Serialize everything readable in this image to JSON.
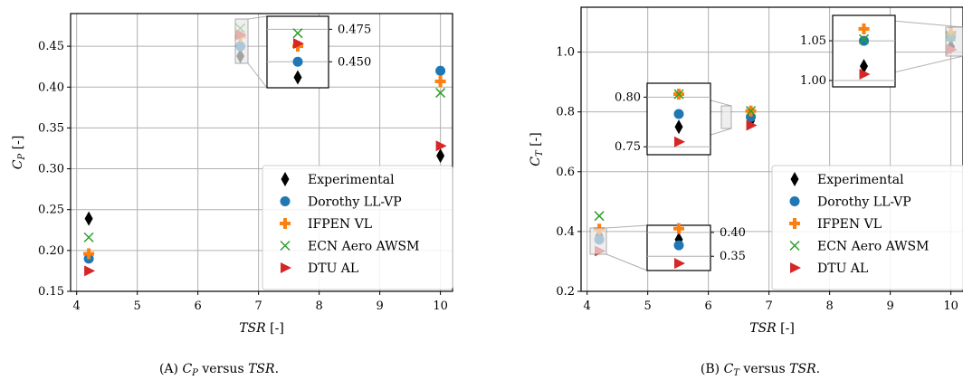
{
  "colors": {
    "experimental": "#000000",
    "dorothy": "#1f77b4",
    "ifpen": "#ff7f0e",
    "ecn": "#2ca02c",
    "dtu": "#d62728",
    "grid": "#b0b0b0"
  },
  "legend": [
    "Experimental",
    "Dorothy LL-VP",
    "IFPEN VL",
    "ECN Aero AWSM",
    "DTU AL"
  ],
  "chart_data": [
    {
      "type": "scatter",
      "xlabel": "TSR [-]",
      "ylabel": "C_P [-]",
      "caption": "(A) C_P versus TSR.",
      "xlim": [
        3.9,
        10.2
      ],
      "ylim": [
        0.15,
        0.49
      ],
      "xticks": [
        4,
        5,
        6,
        7,
        8,
        9,
        10
      ],
      "yticks": [
        0.15,
        0.2,
        0.25,
        0.3,
        0.35,
        0.4,
        0.45
      ],
      "ytick_labels": [
        "0.15",
        "0.20",
        "0.25",
        "0.30",
        "0.35",
        "0.40",
        "0.45"
      ],
      "grid": true,
      "legend_position": "lower-right",
      "series": [
        {
          "name": "Experimental",
          "marker": "diamond",
          "x": [
            4.2,
            6.7,
            10
          ],
          "y": [
            0.239,
            0.438,
            0.316
          ]
        },
        {
          "name": "Dorothy LL-VP",
          "marker": "circle",
          "x": [
            4.2,
            6.7,
            10
          ],
          "y": [
            0.19,
            0.45,
            0.42
          ]
        },
        {
          "name": "IFPEN VL",
          "marker": "plus",
          "x": [
            4.2,
            6.7,
            10
          ],
          "y": [
            0.196,
            0.462,
            0.407
          ]
        },
        {
          "name": "ECN Aero AWSM",
          "marker": "x",
          "x": [
            4.2,
            6.7,
            10
          ],
          "y": [
            0.216,
            0.472,
            0.393
          ]
        },
        {
          "name": "DTU AL",
          "marker": "triangle-right",
          "x": [
            4.2,
            6.7,
            10
          ],
          "y": [
            0.175,
            0.464,
            0.328
          ]
        }
      ],
      "insets": [
        {
          "at_x": 6.7,
          "xlim": [
            6.6,
            6.8
          ],
          "ylim": [
            0.43,
            0.485
          ],
          "yticks": [
            0.45,
            0.475
          ],
          "ytick_labels": [
            "0.450",
            "0.475"
          ]
        }
      ]
    },
    {
      "type": "scatter",
      "xlabel": "TSR [-]",
      "ylabel": "C_T [-]",
      "caption": "(B) C_T versus TSR.",
      "xlim": [
        3.9,
        10.2
      ],
      "ylim": [
        0.2,
        1.15
      ],
      "xticks": [
        4,
        5,
        6,
        7,
        8,
        9,
        10
      ],
      "yticks": [
        0.2,
        0.4,
        0.6,
        0.8,
        1.0
      ],
      "ytick_labels": [
        "0.2",
        "0.4",
        "0.6",
        "0.8",
        "1.0"
      ],
      "grid": true,
      "legend_position": "lower-right",
      "series": [
        {
          "name": "Experimental",
          "marker": "diamond",
          "x": [
            4.2,
            6.7,
            10
          ],
          "y": [
            0.385,
            0.77,
            1.018
          ]
        },
        {
          "name": "Dorothy LL-VP",
          "marker": "circle",
          "x": [
            4.2,
            6.7,
            10
          ],
          "y": [
            0.373,
            0.783,
            1.05
          ]
        },
        {
          "name": "IFPEN VL",
          "marker": "plus",
          "x": [
            4.2,
            6.7,
            10
          ],
          "y": [
            0.408,
            0.803,
            1.065
          ]
        },
        {
          "name": "ECN Aero AWSM",
          "marker": "x",
          "x": [
            4.2,
            6.7,
            10
          ],
          "y": [
            0.452,
            0.803,
            1.052
          ]
        },
        {
          "name": "DTU AL",
          "marker": "triangle-right",
          "x": [
            4.2,
            6.7,
            10
          ],
          "y": [
            0.335,
            0.755,
            1.008
          ]
        }
      ],
      "insets": [
        {
          "at_x": 4.2,
          "xlim": [
            4.1,
            4.3
          ],
          "ylim": [
            0.32,
            0.415
          ],
          "yticks": [
            0.35,
            0.4
          ],
          "ytick_labels": [
            "0.35",
            "0.40"
          ]
        },
        {
          "at_x": 6.7,
          "xlim": [
            6.6,
            6.8
          ],
          "ylim": [
            0.742,
            0.814
          ],
          "yticks": [
            0.75,
            0.8
          ],
          "ytick_labels": [
            "0.75",
            "0.80"
          ]
        },
        {
          "at_x": 10,
          "xlim": [
            9.9,
            10.1
          ],
          "ylim": [
            0.992,
            1.082
          ],
          "yticks": [
            1.0,
            1.05
          ],
          "ytick_labels": [
            "1.00",
            "1.05"
          ]
        }
      ]
    }
  ]
}
